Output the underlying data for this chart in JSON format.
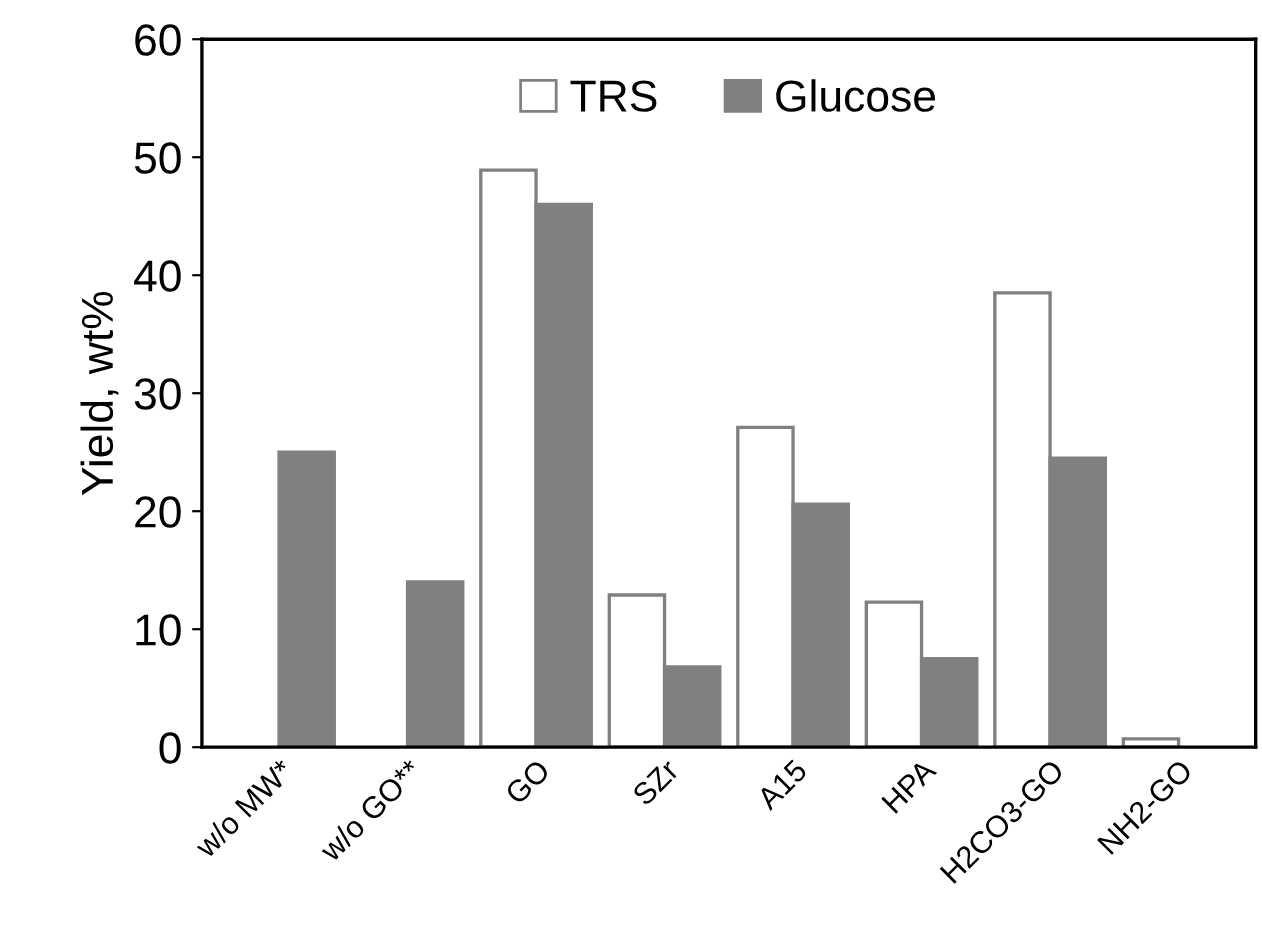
{
  "chart_data": {
    "type": "bar",
    "ylabel": "Yield, wt%",
    "categories": [
      "w/o MW*",
      "w/o GO**",
      "GO",
      "SZr",
      "A15",
      "HPA",
      "H2CO3-GO",
      "NH2-GO"
    ],
    "series": [
      {
        "name": "TRS",
        "color": "#ffffff",
        "values": [
          null,
          null,
          48.9,
          12.9,
          27.1,
          12.3,
          38.5,
          0.7
        ]
      },
      {
        "name": "Glucose",
        "color": "#808080",
        "values": [
          25.0,
          14.0,
          46.0,
          6.8,
          20.6,
          7.5,
          24.5,
          null
        ]
      }
    ],
    "ylim": [
      0,
      60
    ],
    "yticks": [
      0,
      10,
      20,
      30,
      40,
      50,
      60
    ],
    "grid": false,
    "legend": "top"
  }
}
